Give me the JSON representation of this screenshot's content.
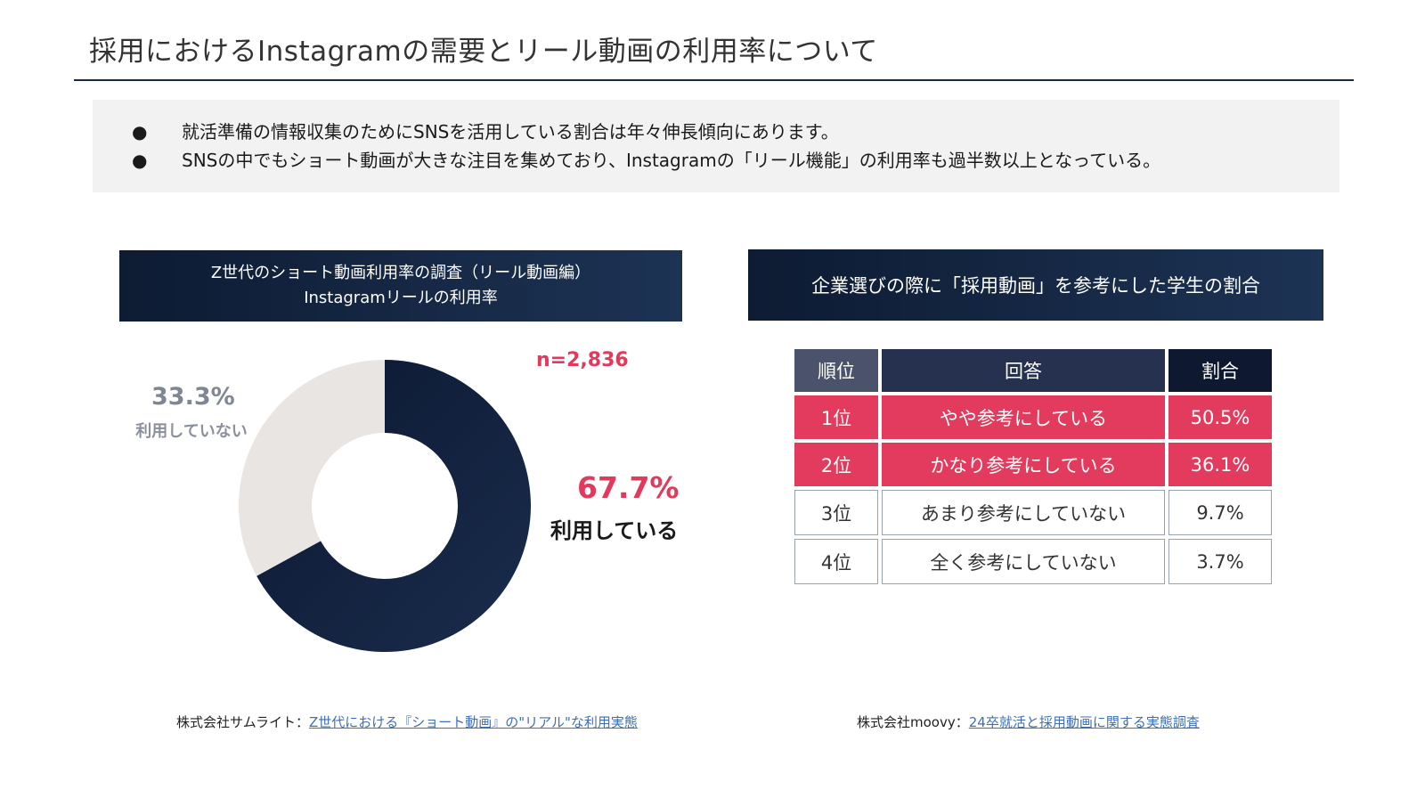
{
  "title": "採用におけるInstagramの需要とリール動画の利用率について",
  "summary": {
    "bullet": "●",
    "items": [
      "就活準備の情報収集のためにSNSを活用している割合は年々伸長傾向にあります。",
      "SNSの中でもショート動画が大きな注目を集めており、Instagramの「リール機能」の利用率も過半数以上となっている。"
    ]
  },
  "left_panel": {
    "header_line1": "Z世代のショート動画利用率の調査（リール動画編）",
    "header_line2": "Instagramリールの利用率",
    "n_label": "n=2,836",
    "used_pct": "67.7%",
    "used_label": "利用している",
    "notused_pct": "33.3%",
    "notused_label": "利用していない"
  },
  "right_panel": {
    "header": "企業選びの際に「採用動画」を参考にした学生の割合",
    "columns": [
      "順位",
      "回答",
      "割合"
    ],
    "rows": [
      [
        "1位",
        "やや参考にしている",
        "50.5%"
      ],
      [
        "2位",
        "かなり参考にしている",
        "36.1%"
      ],
      [
        "3位",
        "あまり参考にしていない",
        "9.7%"
      ],
      [
        "4位",
        "全く参考にしていない",
        "3.7%"
      ]
    ]
  },
  "sources": {
    "left_prefix": "株式会社サムライト：",
    "left_link": "Z世代における『ショート動画』の\"リアル\"な利用実態",
    "right_prefix": "株式会社moovy：",
    "right_link": "24卒就活と採用動画に関する実態調査"
  },
  "colors": {
    "accent": "#e23a5c",
    "navy": "#0e1a33",
    "donut_used": "#0f1c36",
    "donut_unused": "#e9e5e2"
  },
  "chart_data": [
    {
      "type": "pie",
      "categories": [
        "利用している",
        "利用していない"
      ],
      "values": [
        67.7,
        33.3
      ],
      "title": "Instagramリールの利用率"
    },
    {
      "type": "table",
      "columns": [
        "順位",
        "回答",
        "割合"
      ],
      "rows": [
        [
          "1位",
          "やや参考にしている",
          50.5
        ],
        [
          "2位",
          "かなり参考にしている",
          36.1
        ],
        [
          "3位",
          "あまり参考にしていない",
          9.7
        ],
        [
          "4位",
          "全く参考にしていない",
          3.7
        ]
      ],
      "title": "企業選びの際に「採用動画」を参考にした学生の割合"
    }
  ]
}
